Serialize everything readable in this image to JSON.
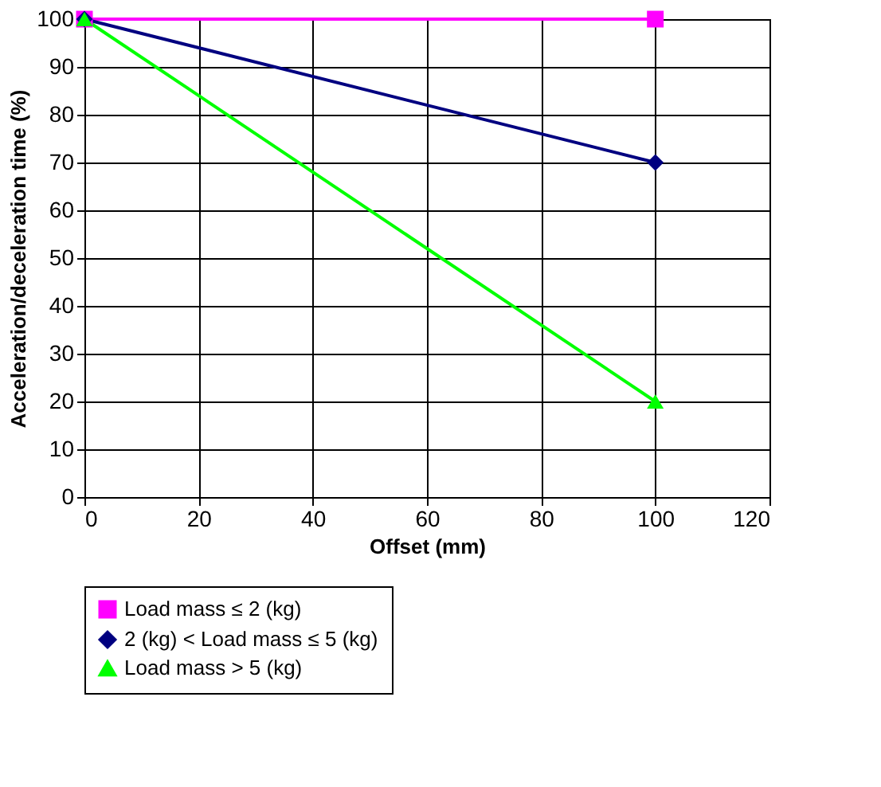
{
  "chart_data": {
    "type": "line",
    "xlabel": "Offset (mm)",
    "ylabel": "Acceleration/deceleration time (%)",
    "x": [
      0,
      100
    ],
    "series": [
      {
        "name": "Load mass ≤ 2 (kg)",
        "color": "#ff00ff",
        "marker": "square",
        "values": [
          100,
          100
        ]
      },
      {
        "name": "2 (kg) < Load mass ≤ 5 (kg)",
        "color": "#000080",
        "marker": "diamond",
        "values": [
          100,
          70
        ]
      },
      {
        "name": "Load mass > 5 (kg)",
        "color": "#00ff00",
        "marker": "triangle",
        "values": [
          100,
          20
        ]
      }
    ],
    "xlim": [
      0,
      120
    ],
    "xticks": [
      0,
      20,
      40,
      60,
      80,
      100,
      120
    ],
    "ylim": [
      0,
      100
    ],
    "yticks": [
      0,
      10,
      20,
      30,
      40,
      50,
      60,
      70,
      80,
      90,
      100
    ],
    "grid": true,
    "legend": "bottom",
    "line_style": "solid"
  }
}
